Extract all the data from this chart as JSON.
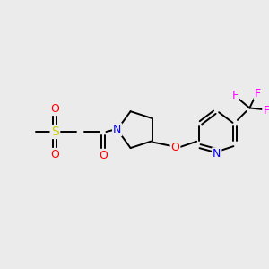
{
  "bg_color": "#ebebeb",
  "bond_color": "#000000",
  "atom_colors": {
    "S": "#cccc00",
    "O": "#ff0000",
    "N": "#0000ff",
    "F": "#ff00ff",
    "C": "#000000"
  },
  "font_size_atoms": 9,
  "title": ""
}
